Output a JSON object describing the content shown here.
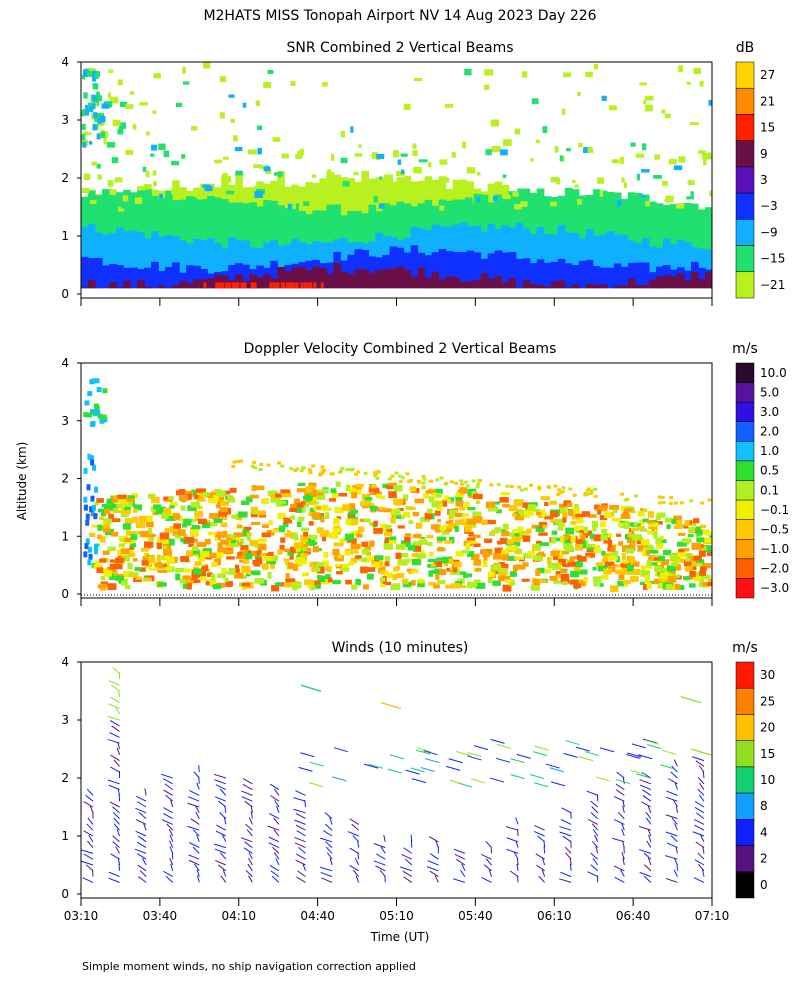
{
  "figure": {
    "title": "M2HATS MISS Tonopah Airport NV  14 Aug 2023 Day 226",
    "ylabel": "Altitude (km)",
    "xlabel": "Time (UT)",
    "footnote": "Simple moment winds, no ship navigation correction applied",
    "colors": {
      "background": "#ffffff",
      "text": "#000000"
    }
  },
  "chart_data": [
    {
      "type": "heatmap",
      "title": "SNR Combined 2 Vertical Beams",
      "ylabel": "Altitude (km)",
      "ylim": [
        0,
        4
      ],
      "yticks": [
        0,
        1,
        2,
        3,
        4
      ],
      "xlim": [
        "03:10",
        "07:10"
      ],
      "x_minor_ticks_minutes": 30,
      "colorbar": {
        "unit": "dB",
        "tick_labels": [
          "27",
          "21",
          "15",
          "9",
          "3",
          "−3",
          "−9",
          "−15",
          "−21"
        ],
        "colors": [
          "#ffd400",
          "#ff8c00",
          "#ff2000",
          "#6a0f4a",
          "#5a10b8",
          "#1030ff",
          "#10b0ff",
          "#20e070",
          "#b8f020"
        ]
      },
      "bands": [
        {
          "level_db": -21,
          "from_km": 0.1,
          "to_km": 2.1,
          "color": "#b8f020"
        },
        {
          "level_db": -15,
          "from_km": 0.1,
          "to_km": 1.6,
          "color": "#20e070"
        },
        {
          "level_db": -9,
          "from_km": 0.1,
          "to_km": 1.0,
          "color": "#10b0ff"
        },
        {
          "level_db": -3,
          "from_km": 0.1,
          "to_km": 0.6,
          "color": "#1030ff"
        },
        {
          "level_db": 9,
          "from_km": 0.1,
          "to_km": 0.3,
          "color": "#6a0f4a"
        }
      ]
    },
    {
      "type": "heatmap",
      "title": "Doppler Velocity Combined 2 Vertical Beams",
      "ylabel": "Altitude (km)",
      "ylim": [
        0,
        4
      ],
      "yticks": [
        0,
        1,
        2,
        3,
        4
      ],
      "xlim": [
        "03:10",
        "07:10"
      ],
      "colorbar": {
        "unit": "m/s",
        "tick_labels": [
          "10.0",
          "5.0",
          "3.0",
          "2.0",
          "1.0",
          "0.5",
          "0.1",
          "−0.1",
          "−0.5",
          "−1.0",
          "−2.0",
          "−3.0"
        ],
        "colors": [
          "#2a0a2a",
          "#5a10a0",
          "#3010e0",
          "#1060ff",
          "#10c0ff",
          "#30e030",
          "#b0f020",
          "#f0f000",
          "#ffc800",
          "#ffa000",
          "#ff6000",
          "#ff1010"
        ]
      },
      "dominant_range_ms": [
        -1.0,
        0.1
      ],
      "data_top_km": 2.1
    },
    {
      "type": "scatter",
      "title": "Winds (10 minutes)",
      "ylabel": "Altitude (km)",
      "xlabel": "Time (UT)",
      "ylim": [
        0,
        4
      ],
      "yticks": [
        0,
        1,
        2,
        3,
        4
      ],
      "xlim": [
        "03:10",
        "07:10"
      ],
      "xtick_labels": [
        "03:10",
        "03:40",
        "04:10",
        "04:40",
        "05:10",
        "05:40",
        "06:10",
        "06:40",
        "07:10"
      ],
      "colorbar": {
        "unit": "m/s",
        "tick_labels": [
          "30",
          "25",
          "20",
          "15",
          "10",
          "8",
          "4",
          "2",
          "0"
        ],
        "colors": [
          "#ff1a00",
          "#ff8000",
          "#ffc000",
          "#90e020",
          "#10d070",
          "#10a0ff",
          "#1020ff",
          "#5a1080",
          "#000000"
        ]
      },
      "profile_interval_minutes": 10,
      "wind_speed_range_ms": [
        0,
        34
      ]
    }
  ]
}
